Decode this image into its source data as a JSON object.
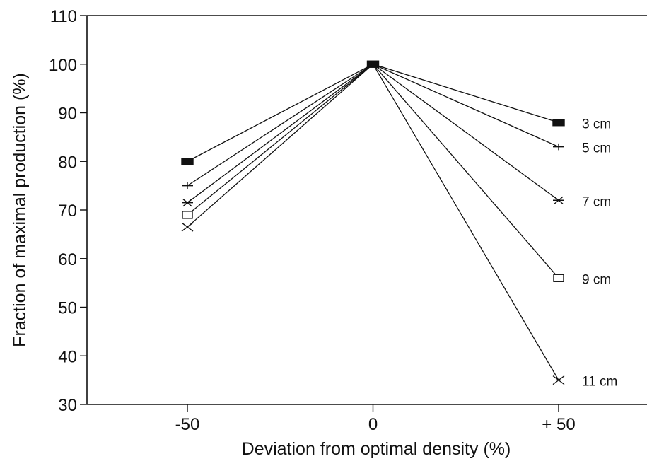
{
  "chart_data": {
    "type": "line",
    "title": "",
    "xlabel": "Deviation from optimal density (%)",
    "ylabel": "Fraction of maximal production (%)",
    "x": [
      -50,
      0,
      50
    ],
    "x_tick_labels": [
      "-50",
      "0",
      "+ 50"
    ],
    "xlim": [
      -100,
      75
    ],
    "ylim": [
      30,
      110
    ],
    "y_ticks": [
      30,
      40,
      50,
      60,
      70,
      80,
      90,
      100,
      110
    ],
    "grid": false,
    "legend": "labels at line ends (right)",
    "series": [
      {
        "name": "3 cm",
        "marker": "filled-rect",
        "values": [
          80,
          100,
          88
        ]
      },
      {
        "name": "5 cm",
        "marker": "plus",
        "values": [
          75,
          100,
          83
        ]
      },
      {
        "name": "7 cm",
        "marker": "asterisk",
        "values": [
          71.5,
          100,
          72
        ]
      },
      {
        "name": "9 cm",
        "marker": "open-square",
        "values": [
          69,
          100,
          56
        ]
      },
      {
        "name": "11 cm",
        "marker": "x",
        "values": [
          66.5,
          100,
          35
        ]
      }
    ]
  }
}
